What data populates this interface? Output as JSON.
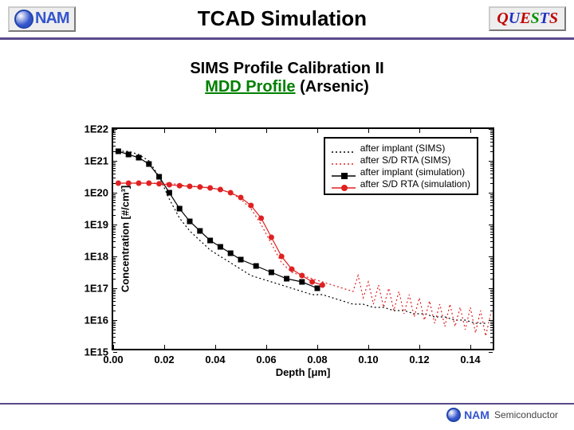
{
  "header": {
    "logo_text": "NAM",
    "title": "TCAD Simulation",
    "quests": [
      {
        "ch": "Q",
        "color": "#c00000"
      },
      {
        "ch": "U",
        "color": "#2030c0"
      },
      {
        "ch": "E",
        "color": "#c00000"
      },
      {
        "ch": "S",
        "color": "#009000"
      },
      {
        "ch": "T",
        "color": "#2030c0"
      },
      {
        "ch": "S",
        "color": "#c00000"
      }
    ]
  },
  "subtitle": {
    "line1": "SIMS Profile Calibration II",
    "mdd_text": "MDD Profile",
    "mdd_color": "#008000",
    "rest": " (Arsenic)"
  },
  "chart": {
    "type": "line-scatter-semilogy",
    "xlabel": "Depth [μm]",
    "ylabel": "Concentration [#/cm³]",
    "xlim": [
      0.0,
      0.15
    ],
    "ylim_exp": [
      15,
      22
    ],
    "xticks": [
      0.0,
      0.02,
      0.04,
      0.06,
      0.08,
      0.1,
      0.12,
      0.14
    ],
    "ytick_exps": [
      15,
      16,
      17,
      18,
      19,
      20,
      21,
      22
    ],
    "background_color": "#ffffff",
    "border_color": "#000000",
    "series": [
      {
        "name": "after implant (SIMS)",
        "type": "line",
        "color": "#000000",
        "dash": "2,3",
        "width": 1.2,
        "data": [
          [
            0.002,
            21.3
          ],
          [
            0.006,
            21.3
          ],
          [
            0.01,
            21.2
          ],
          [
            0.014,
            21.0
          ],
          [
            0.018,
            20.5
          ],
          [
            0.022,
            19.8
          ],
          [
            0.026,
            19.2
          ],
          [
            0.03,
            18.8
          ],
          [
            0.034,
            18.5
          ],
          [
            0.038,
            18.2
          ],
          [
            0.042,
            18.0
          ],
          [
            0.046,
            17.8
          ],
          [
            0.05,
            17.6
          ],
          [
            0.054,
            17.4
          ],
          [
            0.058,
            17.3
          ],
          [
            0.062,
            17.2
          ],
          [
            0.066,
            17.1
          ],
          [
            0.07,
            17.0
          ],
          [
            0.074,
            16.9
          ],
          [
            0.078,
            16.8
          ],
          [
            0.082,
            16.8
          ],
          [
            0.086,
            16.7
          ],
          [
            0.09,
            16.6
          ],
          [
            0.094,
            16.5
          ],
          [
            0.098,
            16.5
          ],
          [
            0.102,
            16.4
          ],
          [
            0.106,
            16.4
          ],
          [
            0.11,
            16.3
          ],
          [
            0.114,
            16.3
          ],
          [
            0.118,
            16.2
          ],
          [
            0.122,
            16.2
          ],
          [
            0.126,
            16.1
          ],
          [
            0.13,
            16.1
          ],
          [
            0.134,
            16.0
          ],
          [
            0.138,
            16.0
          ],
          [
            0.142,
            15.9
          ],
          [
            0.146,
            15.9
          ]
        ]
      },
      {
        "name": "after S/D RTA (SIMS)",
        "type": "line",
        "color": "#e02020",
        "dash": "2,3",
        "width": 1.2,
        "data": [
          [
            0.002,
            20.3
          ],
          [
            0.006,
            20.3
          ],
          [
            0.01,
            20.3
          ],
          [
            0.014,
            20.3
          ],
          [
            0.018,
            20.3
          ],
          [
            0.022,
            20.3
          ],
          [
            0.026,
            20.25
          ],
          [
            0.03,
            20.2
          ],
          [
            0.034,
            20.2
          ],
          [
            0.038,
            20.15
          ],
          [
            0.042,
            20.1
          ],
          [
            0.046,
            20.0
          ],
          [
            0.05,
            19.8
          ],
          [
            0.054,
            19.5
          ],
          [
            0.058,
            19.0
          ],
          [
            0.062,
            18.4
          ],
          [
            0.066,
            17.8
          ],
          [
            0.07,
            17.5
          ],
          [
            0.074,
            17.4
          ],
          [
            0.078,
            17.3
          ],
          [
            0.082,
            17.2
          ],
          [
            0.086,
            17.1
          ],
          [
            0.09,
            17.0
          ],
          [
            0.094,
            16.9
          ],
          [
            0.096,
            17.4
          ],
          [
            0.098,
            16.7
          ],
          [
            0.1,
            17.2
          ],
          [
            0.102,
            16.5
          ],
          [
            0.104,
            17.1
          ],
          [
            0.106,
            16.4
          ],
          [
            0.108,
            17.0
          ],
          [
            0.11,
            16.3
          ],
          [
            0.112,
            16.9
          ],
          [
            0.114,
            16.2
          ],
          [
            0.116,
            16.8
          ],
          [
            0.118,
            16.1
          ],
          [
            0.12,
            16.7
          ],
          [
            0.122,
            16.0
          ],
          [
            0.124,
            16.6
          ],
          [
            0.126,
            15.9
          ],
          [
            0.128,
            16.5
          ],
          [
            0.13,
            15.8
          ],
          [
            0.132,
            16.5
          ],
          [
            0.134,
            15.8
          ],
          [
            0.136,
            16.4
          ],
          [
            0.138,
            15.7
          ],
          [
            0.14,
            16.4
          ],
          [
            0.142,
            15.6
          ],
          [
            0.144,
            16.3
          ],
          [
            0.146,
            15.5
          ],
          [
            0.148,
            16.2
          ]
        ]
      },
      {
        "name": "after implant (simulation)",
        "type": "line-marker",
        "color": "#000000",
        "width": 1.2,
        "marker": "square",
        "marker_size": 7,
        "data": [
          [
            0.002,
            21.3
          ],
          [
            0.006,
            21.2
          ],
          [
            0.01,
            21.1
          ],
          [
            0.014,
            20.9
          ],
          [
            0.018,
            20.5
          ],
          [
            0.022,
            20.0
          ],
          [
            0.026,
            19.5
          ],
          [
            0.03,
            19.1
          ],
          [
            0.034,
            18.8
          ],
          [
            0.038,
            18.5
          ],
          [
            0.042,
            18.3
          ],
          [
            0.046,
            18.1
          ],
          [
            0.05,
            17.9
          ],
          [
            0.056,
            17.7
          ],
          [
            0.062,
            17.5
          ],
          [
            0.068,
            17.3
          ],
          [
            0.074,
            17.2
          ],
          [
            0.08,
            17.0
          ]
        ]
      },
      {
        "name": "after S/D RTA (simulation)",
        "type": "line-marker",
        "color": "#e02020",
        "width": 1.2,
        "marker": "circle",
        "marker_size": 7,
        "data": [
          [
            0.002,
            20.3
          ],
          [
            0.006,
            20.3
          ],
          [
            0.01,
            20.3
          ],
          [
            0.014,
            20.3
          ],
          [
            0.018,
            20.28
          ],
          [
            0.022,
            20.25
          ],
          [
            0.026,
            20.22
          ],
          [
            0.03,
            20.2
          ],
          [
            0.034,
            20.18
          ],
          [
            0.038,
            20.15
          ],
          [
            0.042,
            20.1
          ],
          [
            0.046,
            20.0
          ],
          [
            0.05,
            19.85
          ],
          [
            0.054,
            19.6
          ],
          [
            0.058,
            19.2
          ],
          [
            0.062,
            18.6
          ],
          [
            0.066,
            18.0
          ],
          [
            0.07,
            17.6
          ],
          [
            0.074,
            17.4
          ],
          [
            0.078,
            17.2
          ],
          [
            0.082,
            17.1
          ]
        ]
      }
    ],
    "legend": {
      "position": "top-right",
      "items": [
        {
          "label": "after implant (SIMS)",
          "style": "dash-black"
        },
        {
          "label": "after S/D RTA (SIMS)",
          "style": "dash-red"
        },
        {
          "label": "after implant (simulation)",
          "style": "line-sq-black"
        },
        {
          "label": "after S/D RTA (simulation)",
          "style": "line-circ-red"
        }
      ]
    }
  },
  "footer": {
    "brand": "NAM",
    "sub": "Semiconductor"
  }
}
